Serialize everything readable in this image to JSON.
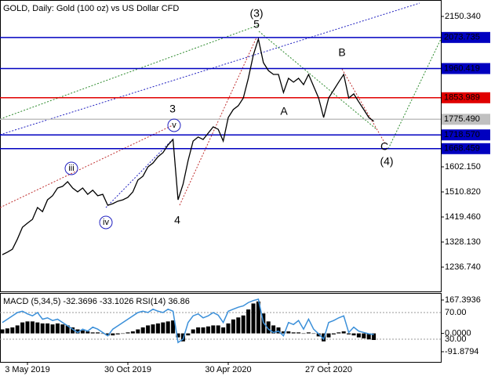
{
  "chart_data": [
    {
      "type": "line",
      "title": "GOLD, Daily:  Gold (100 oz) vs US Dollar CFD",
      "categories": [
        null,
        null,
        null,
        null,
        null,
        "3 May 2019",
        null,
        null,
        null,
        null,
        null,
        null,
        null,
        null,
        null,
        null,
        null,
        null,
        null,
        null,
        null,
        null,
        null,
        null,
        null,
        "30 Oct 2019",
        null,
        null,
        null,
        null,
        null,
        null,
        null,
        null,
        null,
        null,
        null,
        null,
        null,
        null,
        null,
        null,
        null,
        null,
        null,
        "30 Apr 2020",
        null,
        null,
        null,
        null,
        null,
        null,
        null,
        null,
        null,
        null,
        null,
        null,
        null,
        null,
        null,
        null,
        null,
        null,
        null,
        "27 Oct 2020",
        null,
        null,
        null,
        null,
        null,
        null,
        null,
        null,
        null
      ],
      "series": [
        {
          "color": "#000000",
          "values": [
            1282,
            1291,
            1302,
            1339,
            1382,
            1397,
            1411,
            1454,
            1439,
            1482,
            1497,
            1525,
            1531,
            1548,
            1525,
            1511,
            1525,
            1502,
            1517,
            1497,
            1502,
            1462,
            1468,
            1477,
            1482,
            1491,
            1511,
            1554,
            1568,
            1602,
            1616,
            1639,
            1654,
            1682,
            1702,
            1482,
            1539,
            1625,
            1696,
            1711,
            1702,
            1725,
            1748,
            1739,
            1696,
            1782,
            1811,
            1825,
            1853,
            1925,
            2010,
            2068,
            1982,
            1953,
            1939,
            1939,
            1873,
            1925,
            1911,
            1925,
            1902,
            1939,
            1896,
            1853,
            1782,
            1853,
            1882,
            1911,
            1939,
            1853,
            1868,
            1839,
            1811,
            1782,
            1768
          ]
        }
      ],
      "ylim": [
        1148.2,
        2210.3
      ],
      "yticks": [
        {
          "value": 2150.34,
          "label": "2150.340"
        },
        {
          "value": 1602.15,
          "label": "1602.150"
        },
        {
          "value": 1510.82,
          "label": "1510.820"
        },
        {
          "value": 1419.46,
          "label": "1419.460"
        },
        {
          "value": 1328.13,
          "label": "1328.130"
        },
        {
          "value": 1236.74,
          "label": "1236.740"
        }
      ],
      "levels": [
        {
          "value": 2073.735,
          "color": "#0000c0"
        },
        {
          "value": 1960.419,
          "color": "#0000c0"
        },
        {
          "value": 1853.989,
          "color": "#e00000"
        },
        {
          "value": 1775.49,
          "label": "1775.490",
          "color": "#c0c0c0"
        },
        {
          "value": 1718.57,
          "label": "1718.570",
          "color": "#0000c0"
        },
        {
          "value": 1668.459,
          "color": "#0000c0"
        }
      ],
      "annotations": [
        {
          "text": "(3)",
          "color": "#2e8b2e"
        },
        {
          "text": "5",
          "color": "#b03030"
        },
        {
          "text": "3",
          "color": "#b03030"
        },
        {
          "text": "v",
          "color": "#2020c0",
          "circled": true
        },
        {
          "text": "iii",
          "color": "#2020c0",
          "circled": true
        },
        {
          "text": "iv",
          "color": "#2020c0",
          "circled": true
        },
        {
          "text": "4",
          "color": "#b03030"
        },
        {
          "text": "A",
          "color": "#b03030"
        },
        {
          "text": "B",
          "color": "#b03030"
        },
        {
          "text": "C",
          "color": "#b03030"
        },
        {
          "text": "(4)",
          "color": "#2e8b2e"
        }
      ]
    },
    {
      "type": "bar",
      "title": "MACD (5,34,5) -32.3696 -33.1026 RSI(14) 36.86",
      "series": [
        {
          "type": "bar",
          "color": "#000000",
          "values": [
            20,
            25,
            30,
            40,
            55,
            60,
            60,
            55,
            50,
            50,
            45,
            50,
            45,
            40,
            30,
            20,
            15,
            10,
            5,
            5,
            0,
            -10,
            -10,
            -5,
            0,
            5,
            10,
            20,
            30,
            40,
            45,
            50,
            55,
            60,
            65,
            -20,
            -40,
            -10,
            20,
            30,
            30,
            35,
            40,
            40,
            30,
            50,
            70,
            80,
            90,
            120,
            150,
            160,
            100,
            60,
            40,
            30,
            10,
            10,
            5,
            5,
            0,
            5,
            0,
            -15,
            -40,
            -20,
            -5,
            5,
            10,
            -5,
            -10,
            -20,
            -25,
            -30,
            -33
          ]
        },
        {
          "type": "line",
          "axis": "y2",
          "color": "#3a8fd9",
          "values": [
            55,
            60,
            65,
            70,
            72,
            68,
            65,
            70,
            60,
            62,
            58,
            60,
            55,
            50,
            45,
            40,
            45,
            42,
            48,
            45,
            40,
            35,
            45,
            50,
            55,
            60,
            65,
            70,
            72,
            70,
            75,
            72,
            70,
            75,
            72,
            25,
            30,
            55,
            65,
            68,
            62,
            65,
            70,
            66,
            55,
            72,
            75,
            78,
            80,
            85,
            88,
            90,
            55,
            45,
            40,
            42,
            35,
            55,
            52,
            58,
            45,
            60,
            45,
            38,
            30,
            55,
            58,
            62,
            65,
            40,
            48,
            42,
            40,
            38,
            37
          ]
        }
      ],
      "ylim": [
        -143,
        202.8
      ],
      "yticks": [
        167.3936,
        {
          "value": 0,
          "label": "0.0000"
        },
        -91.8794
      ],
      "y2lim": [
        -4.2,
        99.4
      ],
      "y2ticks": [
        {
          "value": 70,
          "label": "70.00"
        },
        {
          "value": 30,
          "label": "30.00"
        }
      ]
    }
  ]
}
